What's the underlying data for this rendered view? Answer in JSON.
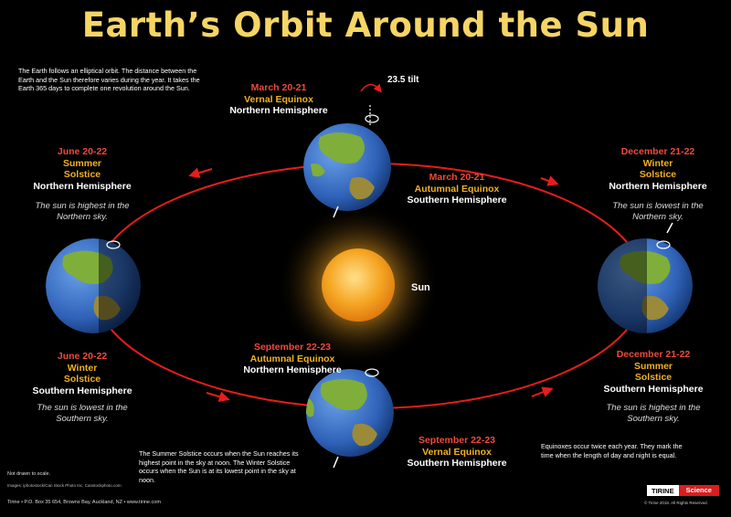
{
  "title": "Earth’s Orbit Around the Sun",
  "intro": "The Earth follows an elliptical orbit. The distance between the Earth and the Sun therefore varies during the year. It takes the Earth 365 days to complete one revolution around the Sun.",
  "tilt_label": "23.5 tilt",
  "sun_label": "Sun",
  "top": {
    "date": "March 20-21",
    "event": "Vernal Equinox",
    "hemisphere": "Northern Hemisphere"
  },
  "top_inner": {
    "date": "March 20-21",
    "event": "Autumnal Equinox",
    "hemisphere": "Southern Hemisphere"
  },
  "left_top": {
    "date": "June  20-22",
    "event1": "Summer",
    "event2": "Solstice",
    "hemisphere": "Northern Hemisphere",
    "note": "The sun is highest in the Northern sky."
  },
  "left_bottom": {
    "date": "June  20-22",
    "event1": "Winter",
    "event2": "Solstice",
    "hemisphere": "Southern Hemisphere",
    "note": "The sun is lowest in the Southern sky."
  },
  "right_top": {
    "date": "December 21-22",
    "event1": "Winter",
    "event2": "Solstice",
    "hemisphere": "Northern Hemisphere",
    "note": "The sun is lowest in the Northern sky."
  },
  "right_bottom": {
    "date": "December 21-22",
    "event1": "Summer",
    "event2": "Solstice",
    "hemisphere": "Southern Hemisphere",
    "note": "The sun is highest in the Southern sky."
  },
  "bottom_inner": {
    "date": "September 22-23",
    "event": "Autumnal Equinox",
    "hemisphere": "Northern Hemisphere"
  },
  "bottom": {
    "date": "September 22-23",
    "event": "Vernal Equinox",
    "hemisphere": "Southern Hemisphere"
  },
  "solstice_note": "The Summer Solstice occurs when the Sun reaches its highest point in the sky at noon. The Winter Solstice occurs when the Sun is at its lowest point in the sky at noon.",
  "equinox_note": "Equinoxes occur twice each year. They mark the time when the length of day and night is equal.",
  "scale_note": "Not drawn to scale.",
  "images_credit": "Images: iphotostock/Can Stock Photo Inc, Canstockphoto.com",
  "footer": "Tirine  •  P.O. Box 35 654, Browns Bay, Auckland, NZ  •  www.tirine.com",
  "brand_left": "TIRINE",
  "brand_right": "Science",
  "copyright": "© Tirine 2018.  All Rights Reserved.",
  "colors": {
    "title": "#f6d565",
    "date": "#ef4a3a",
    "event": "#f2b11e",
    "orbit": "#e81c1c",
    "ocean": "#2f62b8",
    "land": "#7fae3a",
    "sun": "#f5a623"
  }
}
